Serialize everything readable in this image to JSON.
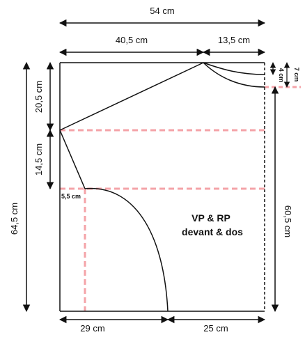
{
  "dimensions": {
    "total_width": "54 cm",
    "left_top_width": "40,5 cm",
    "right_top_width": "13,5 cm",
    "right_7": "7 cm",
    "right_4": "4 cm",
    "left_upper": "20,5 cm",
    "left_middle": "14,5 cm",
    "left_total": "64,5 cm",
    "right_lower": "60,5 cm",
    "small_offset": "5,5 cm",
    "bottom_left": "29 cm",
    "bottom_right": "25 cm"
  },
  "label": {
    "line1": "VP & RP",
    "line2": "devant & dos"
  },
  "colors": {
    "line": "#111111",
    "guide": "#f4a3a8"
  }
}
